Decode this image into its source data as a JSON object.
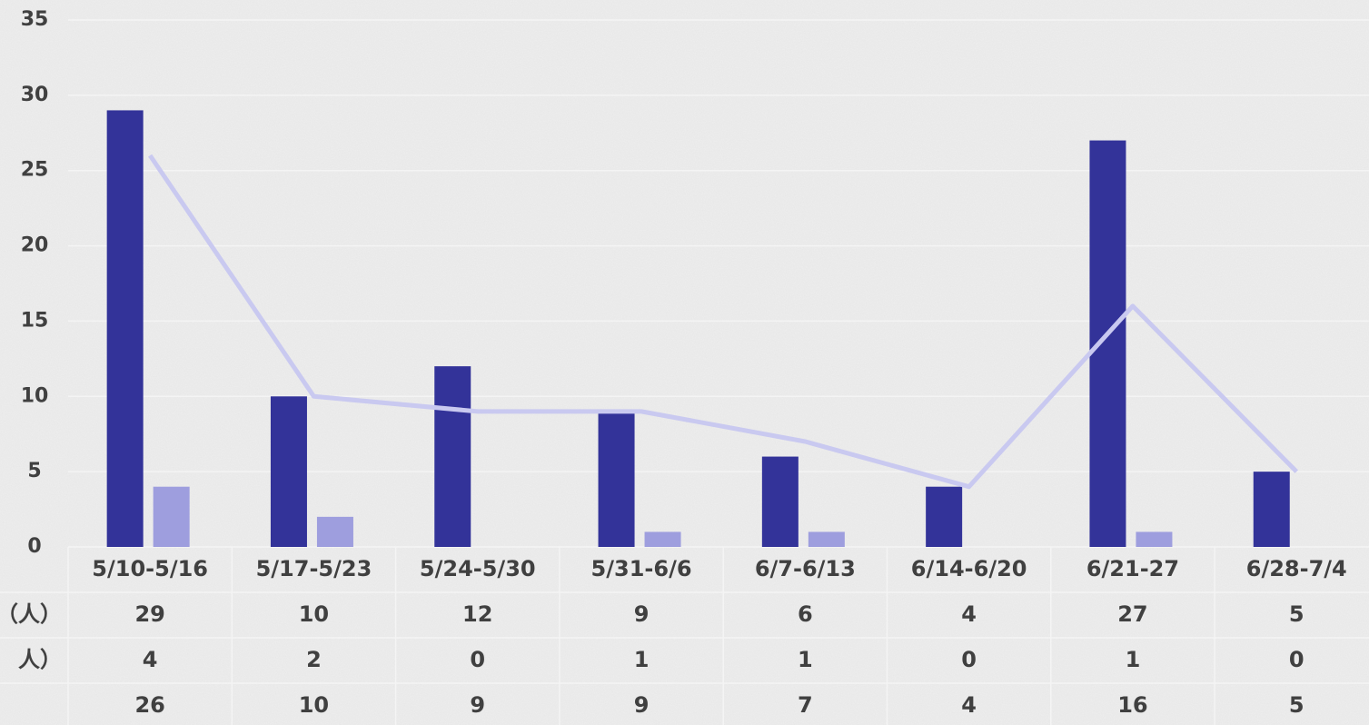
{
  "chart_data": {
    "type": "bar",
    "categories": [
      "5/10-5/16",
      "5/17-5/23",
      "5/24-5/30",
      "5/31-6/6",
      "6/7-6/13",
      "6/14-6/20",
      "6/21-27",
      "6/28-7/4"
    ],
    "series": [
      {
        "name": "（人）",
        "color": "#333399",
        "values": [
          29,
          10,
          12,
          9,
          6,
          4,
          27,
          5
        ]
      },
      {
        "name": "人）",
        "color": "#9e9ede",
        "values": [
          4,
          2,
          0,
          1,
          1,
          0,
          1,
          0
        ]
      },
      {
        "type": "line",
        "color": "#c9c9f0",
        "values": [
          26,
          10,
          9,
          9,
          7,
          4,
          16,
          5
        ]
      }
    ],
    "ylim": [
      0,
      35
    ],
    "yticks": [
      0,
      5,
      10,
      15,
      20,
      25,
      30,
      35
    ],
    "grid": true
  }
}
